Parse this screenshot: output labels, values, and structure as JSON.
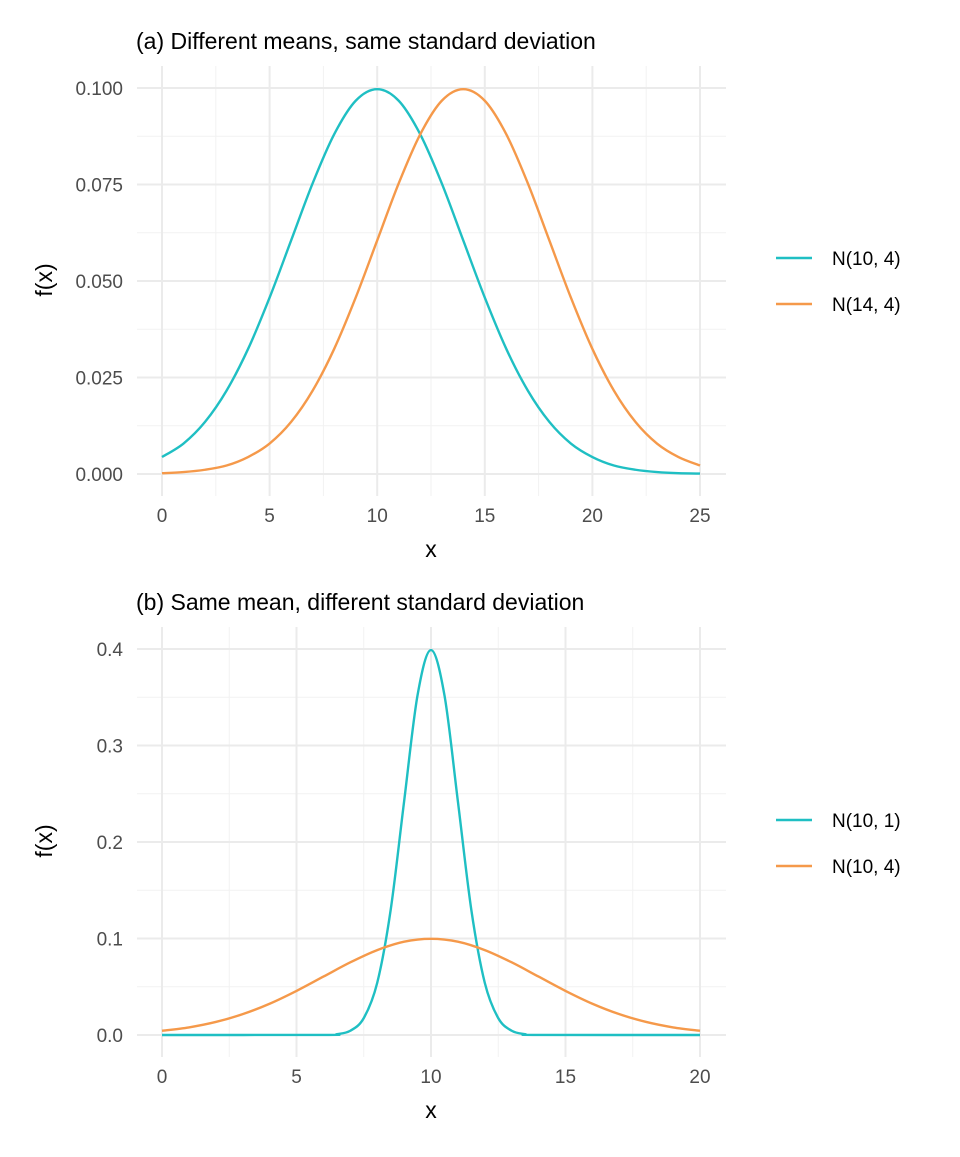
{
  "colors": {
    "series_1": "#1FBFC3",
    "series_2": "#F5994A"
  },
  "chart_data": [
    {
      "type": "line",
      "title": "(a) Different means, same standard deviation",
      "xlabel": "x",
      "ylabel": "f(x)",
      "xlim": [
        0,
        25
      ],
      "ylim": [
        0,
        0.1
      ],
      "x_ticks": [
        0,
        5,
        10,
        15,
        20,
        25
      ],
      "x_tick_labels": [
        "0",
        "5",
        "10",
        "15",
        "20",
        "25"
      ],
      "y_ticks": [
        0,
        0.025,
        0.05,
        0.075,
        0.1
      ],
      "y_tick_labels": [
        "0.000",
        "0.025",
        "0.050",
        "0.075",
        "0.100"
      ],
      "grid": true,
      "legend_position": "right",
      "series": [
        {
          "name": "N(10, 4)",
          "color": "#1FBFC3",
          "x": [
            0,
            1,
            2,
            3,
            4,
            5,
            6,
            7,
            8,
            9,
            10,
            11,
            12,
            13,
            14,
            15,
            16,
            17,
            18,
            19,
            20,
            21,
            22,
            23,
            24,
            25
          ],
          "values": [
            0.0044,
            0.0079,
            0.0135,
            0.0216,
            0.0324,
            0.0457,
            0.0605,
            0.0753,
            0.088,
            0.0967,
            0.0997,
            0.0967,
            0.088,
            0.0753,
            0.0605,
            0.0457,
            0.0324,
            0.0216,
            0.0135,
            0.0079,
            0.0044,
            0.0022,
            0.0011,
            0.0005,
            0.0002,
            0.0001
          ]
        },
        {
          "name": "N(14, 4)",
          "color": "#F5994A",
          "x": [
            0,
            1,
            2,
            3,
            4,
            5,
            6,
            7,
            8,
            9,
            10,
            11,
            12,
            13,
            14,
            15,
            16,
            17,
            18,
            19,
            20,
            21,
            22,
            23,
            24,
            25
          ],
          "values": [
            0.0002,
            0.0005,
            0.0011,
            0.0022,
            0.0044,
            0.0079,
            0.0135,
            0.0216,
            0.0324,
            0.0457,
            0.0605,
            0.0753,
            0.088,
            0.0967,
            0.0997,
            0.0967,
            0.088,
            0.0753,
            0.0605,
            0.0457,
            0.0324,
            0.0216,
            0.0135,
            0.0079,
            0.0044,
            0.0022
          ]
        }
      ]
    },
    {
      "type": "line",
      "title": "(b) Same mean, different standard deviation",
      "xlabel": "x",
      "ylabel": "f(x)",
      "xlim": [
        0,
        20
      ],
      "ylim": [
        0,
        0.4
      ],
      "x_ticks": [
        0,
        5,
        10,
        15,
        20
      ],
      "x_tick_labels": [
        "0",
        "5",
        "10",
        "15",
        "20"
      ],
      "y_ticks": [
        0,
        0.1,
        0.2,
        0.3,
        0.4
      ],
      "y_tick_labels": [
        "0.0",
        "0.1",
        "0.2",
        "0.3",
        "0.4"
      ],
      "grid": true,
      "legend_position": "right",
      "series": [
        {
          "name": "N(10, 1)",
          "color": "#1FBFC3",
          "x": [
            0,
            6,
            6.5,
            7,
            7.5,
            8,
            8.5,
            9,
            9.5,
            10,
            10.5,
            11,
            11.5,
            12,
            12.5,
            13,
            13.5,
            14,
            20
          ],
          "values": [
            0,
            0.0001,
            0.0009,
            0.0044,
            0.0175,
            0.054,
            0.1295,
            0.242,
            0.3521,
            0.3989,
            0.3521,
            0.242,
            0.1295,
            0.054,
            0.0175,
            0.0044,
            0.0009,
            0.0001,
            0
          ]
        },
        {
          "name": "N(10, 4)",
          "color": "#F5994A",
          "x": [
            0,
            1,
            2,
            3,
            4,
            5,
            6,
            7,
            8,
            9,
            10,
            11,
            12,
            13,
            14,
            15,
            16,
            17,
            18,
            19,
            20
          ],
          "values": [
            0.0044,
            0.0079,
            0.0135,
            0.0216,
            0.0324,
            0.0457,
            0.0605,
            0.0753,
            0.088,
            0.0967,
            0.0997,
            0.0967,
            0.088,
            0.0753,
            0.0605,
            0.0457,
            0.0324,
            0.0216,
            0.0135,
            0.0079,
            0.0044
          ]
        }
      ]
    }
  ]
}
